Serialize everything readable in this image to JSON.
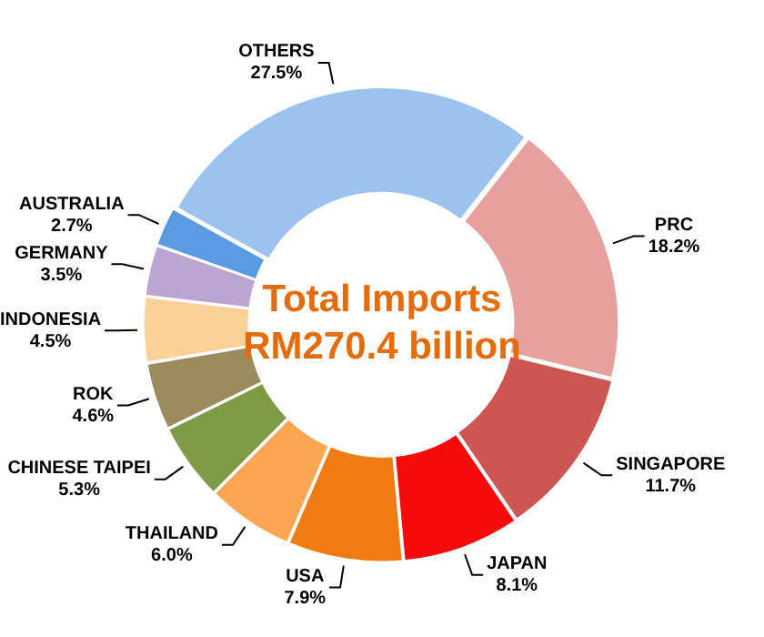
{
  "chart_data": {
    "type": "donut",
    "title": "Total Imports RM270.4 billion",
    "categories": [
      "PRC",
      "SINGAPORE",
      "JAPAN",
      "USA",
      "THAILAND",
      "CHINESE TAIPEI",
      "ROK",
      "INDONESIA",
      "GERMANY",
      "AUSTRALIA",
      "OTHERS"
    ],
    "values": [
      18.2,
      11.7,
      8.1,
      7.9,
      6.0,
      5.3,
      4.6,
      4.5,
      3.5,
      2.7,
      27.5
    ],
    "value_labels": [
      "18.2%",
      "11.7%",
      "8.1%",
      "7.9%",
      "6.0%",
      "5.3%",
      "4.6%",
      "4.5%",
      "3.5%",
      "2.7%",
      "27.5%"
    ],
    "colors": [
      "#e6a09e",
      "#cd5552",
      "#f80a0a",
      "#f07b12",
      "#fba653",
      "#7f9b45",
      "#9c8c5d",
      "#fdd09a",
      "#bba5d1",
      "#5a9ae0",
      "#9cc2f0"
    ],
    "legend": false
  }
}
